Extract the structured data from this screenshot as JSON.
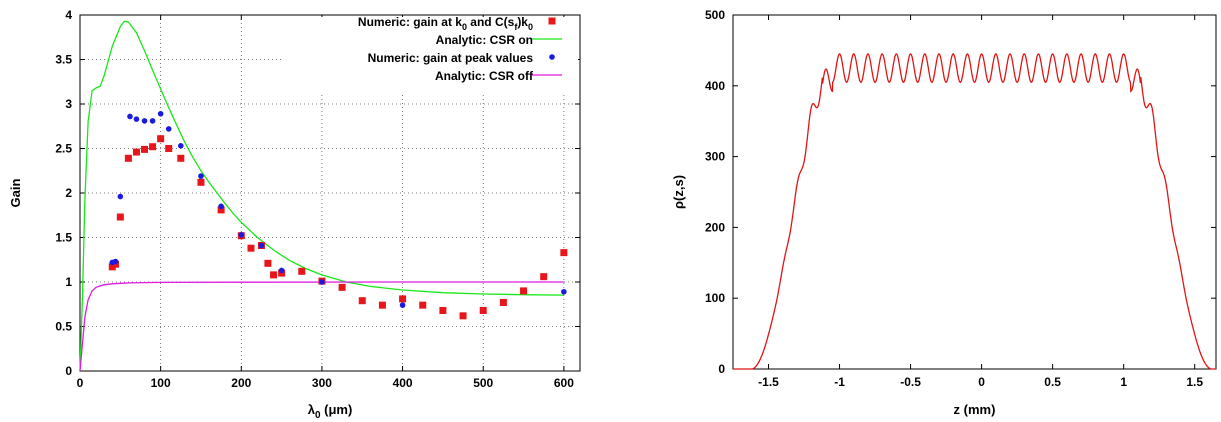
{
  "chart_data": [
    {
      "type": "scatter",
      "xlabel": "λ0 (μm)",
      "xlabel_main": "λ",
      "xlabel_sub": "0",
      "xlabel_tail": " (μm)",
      "ylabel": "Gain",
      "xlim": [
        0,
        620
      ],
      "ylim": [
        0,
        4
      ],
      "xticks": [
        0,
        100,
        200,
        300,
        400,
        500,
        600
      ],
      "yticks": [
        0,
        0.5,
        1,
        1.5,
        2,
        2.5,
        3,
        3.5,
        4
      ],
      "ytick_labels": [
        "0",
        "0.5",
        "1",
        "1.5",
        "2",
        "2.5",
        "3",
        "3.5",
        "4"
      ],
      "grid": "dotted",
      "legend_position": "top-right",
      "legend": [
        {
          "label_main": "Numeric: gain at k",
          "label_rest": " and C(s",
          "label_sub2": "f",
          "label_end": ")k",
          "label_sub3": "0",
          "full": "Numeric: gain at k0 and C(sf)k0",
          "marker": "square",
          "color": "#e8151b"
        },
        {
          "label": "Analytic: CSR on",
          "marker": "line",
          "color": "#18e818"
        },
        {
          "label": "Numeric: gain at peak values",
          "marker": "dot",
          "color": "#1a1ae0"
        },
        {
          "label": "Analytic: CSR off",
          "marker": "line",
          "color": "#e01ae0"
        }
      ],
      "series": [
        {
          "name": "Numeric: gain at k0 and C(sf)k0",
          "style": "square",
          "color": "#e8151b",
          "points": [
            [
              40,
              1.17
            ],
            [
              44,
              1.2
            ],
            [
              50,
              1.73
            ],
            [
              60,
              2.39
            ],
            [
              70,
              2.46
            ],
            [
              80,
              2.49
            ],
            [
              90,
              2.52
            ],
            [
              100,
              2.61
            ],
            [
              110,
              2.5
            ],
            [
              125,
              2.39
            ],
            [
              150,
              2.12
            ],
            [
              175,
              1.81
            ],
            [
              200,
              1.52
            ],
            [
              212,
              1.38
            ],
            [
              225,
              1.41
            ],
            [
              233,
              1.21
            ],
            [
              240,
              1.08
            ],
            [
              250,
              1.1
            ],
            [
              275,
              1.12
            ],
            [
              300,
              1.01
            ],
            [
              325,
              0.94
            ],
            [
              350,
              0.79
            ],
            [
              375,
              0.74
            ],
            [
              400,
              0.81
            ],
            [
              425,
              0.74
            ],
            [
              450,
              0.68
            ],
            [
              475,
              0.62
            ],
            [
              500,
              0.68
            ],
            [
              525,
              0.77
            ],
            [
              550,
              0.9
            ],
            [
              575,
              1.06
            ],
            [
              600,
              1.33
            ]
          ]
        },
        {
          "name": "Numeric: gain at peak values",
          "style": "dot",
          "color": "#1a1ae0",
          "points": [
            [
              40,
              1.22
            ],
            [
              44,
              1.23
            ],
            [
              50,
              1.96
            ],
            [
              62,
              2.86
            ],
            [
              70,
              2.83
            ],
            [
              80,
              2.81
            ],
            [
              90,
              2.81
            ],
            [
              100,
              2.89
            ],
            [
              110,
              2.72
            ],
            [
              125,
              2.53
            ],
            [
              150,
              2.19
            ],
            [
              175,
              1.85
            ],
            [
              200,
              1.53
            ],
            [
              225,
              1.41
            ],
            [
              250,
              1.13
            ],
            [
              300,
              1.0
            ],
            [
              400,
              0.74
            ],
            [
              600,
              0.89
            ]
          ]
        },
        {
          "name": "Analytic: CSR on",
          "style": "line",
          "color": "#18e818",
          "points": [
            [
              0,
              0
            ],
            [
              3,
              0.8
            ],
            [
              6,
              1.9
            ],
            [
              10,
              2.8
            ],
            [
              15,
              3.15
            ],
            [
              20,
              3.18
            ],
            [
              25,
              3.2
            ],
            [
              30,
              3.32
            ],
            [
              40,
              3.65
            ],
            [
              50,
              3.87
            ],
            [
              55,
              3.93
            ],
            [
              60,
              3.92
            ],
            [
              70,
              3.8
            ],
            [
              80,
              3.6
            ],
            [
              90,
              3.38
            ],
            [
              100,
              3.17
            ],
            [
              110,
              2.96
            ],
            [
              120,
              2.76
            ],
            [
              130,
              2.57
            ],
            [
              140,
              2.4
            ],
            [
              150,
              2.25
            ],
            [
              160,
              2.12
            ],
            [
              170,
              2.0
            ],
            [
              180,
              1.88
            ],
            [
              190,
              1.77
            ],
            [
              200,
              1.67
            ],
            [
              220,
              1.5
            ],
            [
              240,
              1.36
            ],
            [
              260,
              1.24
            ],
            [
              280,
              1.15
            ],
            [
              300,
              1.08
            ],
            [
              330,
              1.0
            ],
            [
              360,
              0.95
            ],
            [
              400,
              0.91
            ],
            [
              450,
              0.88
            ],
            [
              500,
              0.865
            ],
            [
              550,
              0.857
            ],
            [
              600,
              0.853
            ]
          ]
        },
        {
          "name": "Analytic: CSR off",
          "style": "line",
          "color": "#e01ae0",
          "points": [
            [
              0,
              0
            ],
            [
              3,
              0.3
            ],
            [
              6,
              0.6
            ],
            [
              10,
              0.8
            ],
            [
              15,
              0.9
            ],
            [
              20,
              0.94
            ],
            [
              30,
              0.97
            ],
            [
              40,
              0.98
            ],
            [
              60,
              0.99
            ],
            [
              100,
              0.995
            ],
            [
              200,
              0.998
            ],
            [
              400,
              1.0
            ],
            [
              600,
              1.0
            ]
          ]
        }
      ]
    },
    {
      "type": "line",
      "xlabel": "z (mm)",
      "ylabel": "ρ(z,s)",
      "xlim": [
        -1.75,
        1.65
      ],
      "ylim": [
        0,
        500
      ],
      "xticks": [
        -1.5,
        -1,
        -0.5,
        0,
        0.5,
        1,
        1.5
      ],
      "xtick_labels": [
        "-1.5",
        "-1",
        "-0.5",
        "0",
        "0.5",
        "1",
        "1.5"
      ],
      "yticks": [
        0,
        100,
        200,
        300,
        400,
        500
      ],
      "ytick_labels": [
        "0",
        "100",
        "200",
        "300",
        "400",
        "500"
      ],
      "grid": "none",
      "series": [
        {
          "name": "",
          "color": "#e01414",
          "profile": {
            "plateau": 425,
            "ripple_amplitude": 20,
            "ripple_period": 0.1,
            "edge_start": 1.62,
            "edge_end": 1.05,
            "range": [
              -1.75,
              1.65
            ]
          }
        }
      ]
    }
  ]
}
